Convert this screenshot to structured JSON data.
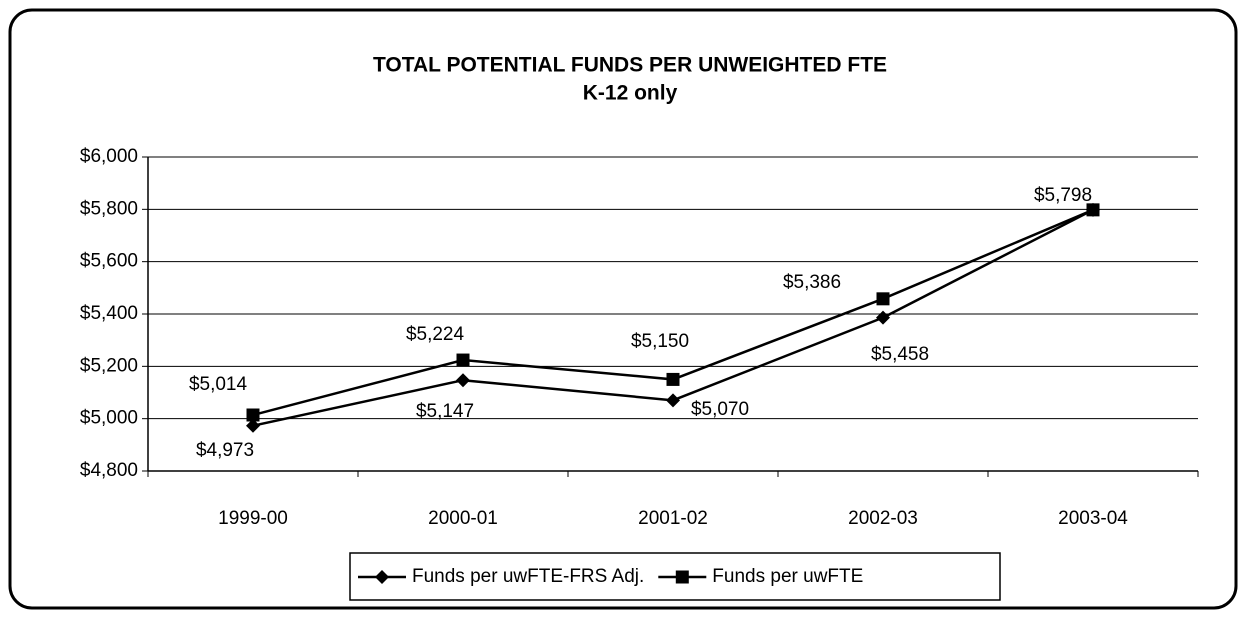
{
  "chart_data": {
    "type": "line",
    "title": "TOTAL POTENTIAL FUNDS PER UNWEIGHTED FTE",
    "subtitle": "K-12 only",
    "categories": [
      "1999-00",
      "2000-01",
      "2001-02",
      "2002-03",
      "2003-04"
    ],
    "series": [
      {
        "name": "Funds per uwFTE-FRS Adj.",
        "color": "#000000",
        "marker": "diamond",
        "values": [
          4973,
          5147,
          5070,
          5386,
          5798
        ],
        "value_labels": [
          "$4,973",
          "$5,147",
          "$5,070",
          "$5,386",
          null
        ]
      },
      {
        "name": "Funds per uwFTE",
        "color": "#000000",
        "marker": "square",
        "values": [
          5014,
          5224,
          5150,
          5458,
          5798
        ],
        "value_labels": [
          "$5,014",
          "$5,224",
          "$5,150",
          "$5,458",
          "$5,798"
        ]
      }
    ],
    "ylim": [
      4800,
      6000
    ],
    "yticks": [
      {
        "value": 4800,
        "label": "$4,800"
      },
      {
        "value": 5000,
        "label": "$5,000"
      },
      {
        "value": 5200,
        "label": "$5,200"
      },
      {
        "value": 5400,
        "label": "$5,400"
      },
      {
        "value": 5600,
        "label": "$5,600"
      },
      {
        "value": 5800,
        "label": "$5,800"
      },
      {
        "value": 6000,
        "label": "$6,000"
      }
    ],
    "grid": true,
    "legend": "bottom"
  }
}
